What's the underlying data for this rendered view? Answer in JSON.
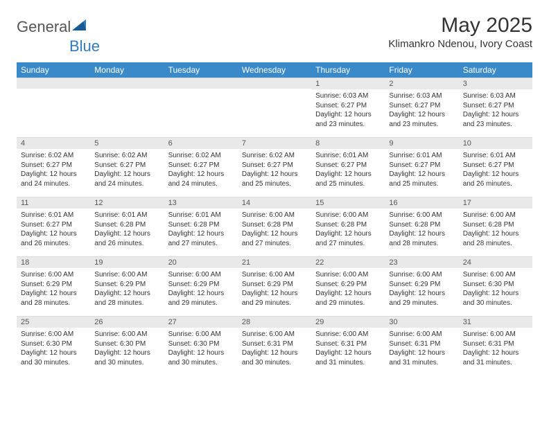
{
  "logo": {
    "general": "General",
    "blue": "Blue"
  },
  "title": "May 2025",
  "location": "Klimankro Ndenou, Ivory Coast",
  "colors": {
    "header_bg": "#3a89c9",
    "header_text": "#ffffff",
    "daynum_bg": "#e9e9e9",
    "logo_blue": "#2f7bbf",
    "logo_gray": "#555555"
  },
  "days_of_week": [
    "Sunday",
    "Monday",
    "Tuesday",
    "Wednesday",
    "Thursday",
    "Friday",
    "Saturday"
  ],
  "first_weekday_index": 4,
  "days": [
    {
      "n": 1,
      "sr": "6:03 AM",
      "ss": "6:27 PM",
      "dl": "12 hours and 23 minutes."
    },
    {
      "n": 2,
      "sr": "6:03 AM",
      "ss": "6:27 PM",
      "dl": "12 hours and 23 minutes."
    },
    {
      "n": 3,
      "sr": "6:03 AM",
      "ss": "6:27 PM",
      "dl": "12 hours and 23 minutes."
    },
    {
      "n": 4,
      "sr": "6:02 AM",
      "ss": "6:27 PM",
      "dl": "12 hours and 24 minutes."
    },
    {
      "n": 5,
      "sr": "6:02 AM",
      "ss": "6:27 PM",
      "dl": "12 hours and 24 minutes."
    },
    {
      "n": 6,
      "sr": "6:02 AM",
      "ss": "6:27 PM",
      "dl": "12 hours and 24 minutes."
    },
    {
      "n": 7,
      "sr": "6:02 AM",
      "ss": "6:27 PM",
      "dl": "12 hours and 25 minutes."
    },
    {
      "n": 8,
      "sr": "6:01 AM",
      "ss": "6:27 PM",
      "dl": "12 hours and 25 minutes."
    },
    {
      "n": 9,
      "sr": "6:01 AM",
      "ss": "6:27 PM",
      "dl": "12 hours and 25 minutes."
    },
    {
      "n": 10,
      "sr": "6:01 AM",
      "ss": "6:27 PM",
      "dl": "12 hours and 26 minutes."
    },
    {
      "n": 11,
      "sr": "6:01 AM",
      "ss": "6:27 PM",
      "dl": "12 hours and 26 minutes."
    },
    {
      "n": 12,
      "sr": "6:01 AM",
      "ss": "6:28 PM",
      "dl": "12 hours and 26 minutes."
    },
    {
      "n": 13,
      "sr": "6:01 AM",
      "ss": "6:28 PM",
      "dl": "12 hours and 27 minutes."
    },
    {
      "n": 14,
      "sr": "6:00 AM",
      "ss": "6:28 PM",
      "dl": "12 hours and 27 minutes."
    },
    {
      "n": 15,
      "sr": "6:00 AM",
      "ss": "6:28 PM",
      "dl": "12 hours and 27 minutes."
    },
    {
      "n": 16,
      "sr": "6:00 AM",
      "ss": "6:28 PM",
      "dl": "12 hours and 28 minutes."
    },
    {
      "n": 17,
      "sr": "6:00 AM",
      "ss": "6:28 PM",
      "dl": "12 hours and 28 minutes."
    },
    {
      "n": 18,
      "sr": "6:00 AM",
      "ss": "6:29 PM",
      "dl": "12 hours and 28 minutes."
    },
    {
      "n": 19,
      "sr": "6:00 AM",
      "ss": "6:29 PM",
      "dl": "12 hours and 28 minutes."
    },
    {
      "n": 20,
      "sr": "6:00 AM",
      "ss": "6:29 PM",
      "dl": "12 hours and 29 minutes."
    },
    {
      "n": 21,
      "sr": "6:00 AM",
      "ss": "6:29 PM",
      "dl": "12 hours and 29 minutes."
    },
    {
      "n": 22,
      "sr": "6:00 AM",
      "ss": "6:29 PM",
      "dl": "12 hours and 29 minutes."
    },
    {
      "n": 23,
      "sr": "6:00 AM",
      "ss": "6:29 PM",
      "dl": "12 hours and 29 minutes."
    },
    {
      "n": 24,
      "sr": "6:00 AM",
      "ss": "6:30 PM",
      "dl": "12 hours and 30 minutes."
    },
    {
      "n": 25,
      "sr": "6:00 AM",
      "ss": "6:30 PM",
      "dl": "12 hours and 30 minutes."
    },
    {
      "n": 26,
      "sr": "6:00 AM",
      "ss": "6:30 PM",
      "dl": "12 hours and 30 minutes."
    },
    {
      "n": 27,
      "sr": "6:00 AM",
      "ss": "6:30 PM",
      "dl": "12 hours and 30 minutes."
    },
    {
      "n": 28,
      "sr": "6:00 AM",
      "ss": "6:31 PM",
      "dl": "12 hours and 30 minutes."
    },
    {
      "n": 29,
      "sr": "6:00 AM",
      "ss": "6:31 PM",
      "dl": "12 hours and 31 minutes."
    },
    {
      "n": 30,
      "sr": "6:00 AM",
      "ss": "6:31 PM",
      "dl": "12 hours and 31 minutes."
    },
    {
      "n": 31,
      "sr": "6:00 AM",
      "ss": "6:31 PM",
      "dl": "12 hours and 31 minutes."
    }
  ],
  "labels": {
    "sunrise": "Sunrise:",
    "sunset": "Sunset:",
    "daylight": "Daylight:"
  }
}
